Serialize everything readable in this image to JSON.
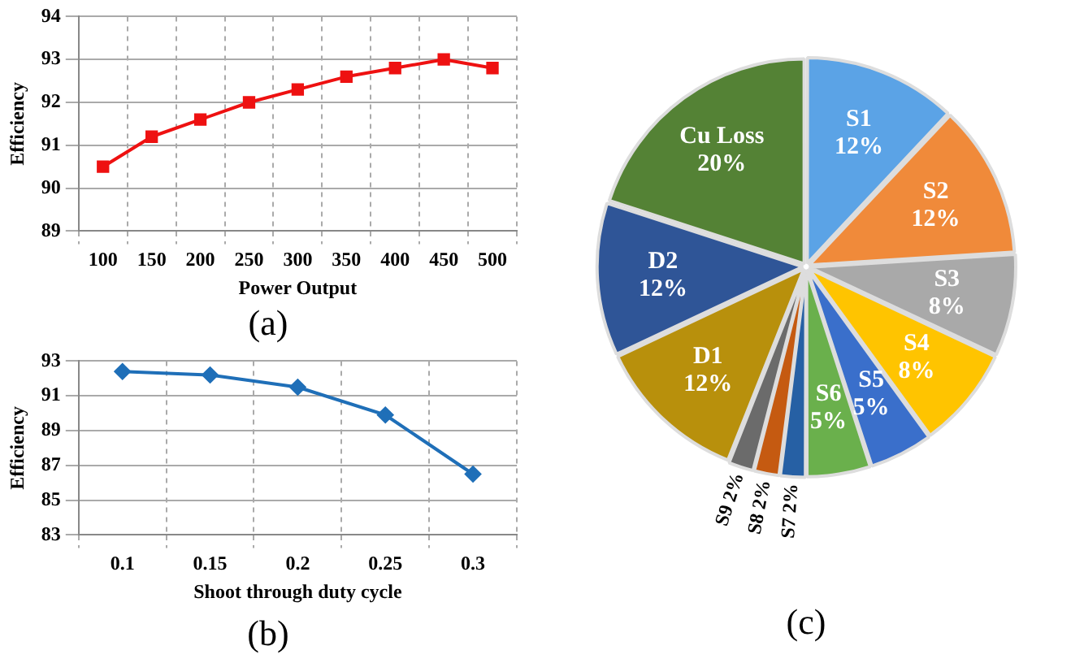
{
  "chart_data": [
    {
      "type": "line",
      "xlabel": "Power Output",
      "ylabel": "Efficiency",
      "categories": [
        "100",
        "150",
        "200",
        "250",
        "300",
        "350",
        "400",
        "450",
        "500"
      ],
      "series": [
        {
          "color": "#ee1111",
          "values": [
            90.5,
            91.2,
            91.6,
            92.0,
            92.3,
            92.6,
            92.8,
            93.0,
            92.8
          ]
        }
      ],
      "ylim": [
        89,
        94
      ],
      "yticks": [
        89,
        90,
        91,
        92,
        93,
        94
      ],
      "grid": true,
      "marker": "square",
      "annotations": [
        "(a)"
      ]
    },
    {
      "type": "line",
      "xlabel": "Shoot through duty cycle",
      "ylabel": "Efficiency",
      "categories": [
        "0.1",
        "0.15",
        "0.2",
        "0.25",
        "0.3"
      ],
      "series": [
        {
          "color": "#1f6fb8",
          "values": [
            92.4,
            92.2,
            91.5,
            89.9,
            86.5
          ]
        }
      ],
      "ylim": [
        83,
        93
      ],
      "yticks": [
        83,
        85,
        87,
        89,
        91,
        93
      ],
      "grid": true,
      "marker": "diamond",
      "annotations": [
        "(b)"
      ]
    },
    {
      "type": "pie",
      "categories": [
        "S1",
        "S2",
        "S3",
        "S4",
        "S5",
        "S6",
        "S7",
        "S8",
        "S9",
        "D1",
        "D2",
        "Cu Loss"
      ],
      "values": [
        12,
        12,
        8,
        8,
        5,
        5,
        2,
        2,
        2,
        12,
        12,
        20
      ],
      "colors": [
        "#5ba3e6",
        "#f08a3a",
        "#a9a9a9",
        "#ffc400",
        "#3a6fcb",
        "#6ab04c",
        "#2660a4",
        "#c55a11",
        "#6b6b6b",
        "#b8900c",
        "#2f5597",
        "#548235"
      ],
      "value_labels": [
        "12%",
        "12%",
        "8%",
        "8%",
        "5%",
        "5%",
        "2%",
        "2%",
        "2%",
        "12%",
        "12%",
        "20%"
      ],
      "annotations": [
        "(c)"
      ]
    }
  ]
}
